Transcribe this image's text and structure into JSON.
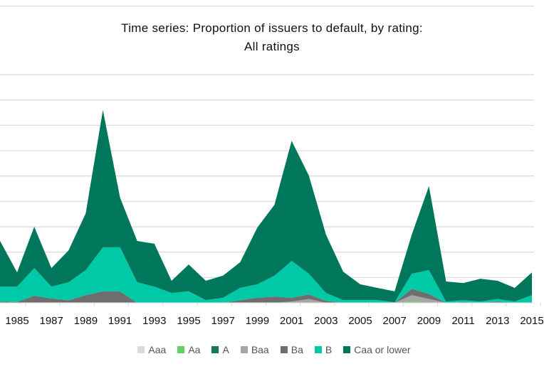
{
  "chart_data": {
    "type": "area",
    "stacked": true,
    "title": "Time series: Proportion of issuers to default, by rating:",
    "subtitle": "All ratings",
    "xlabel": "",
    "ylabel": "",
    "xlim": [
      1984,
      2015
    ],
    "ylim": [
      0,
      9
    ],
    "grid": true,
    "legend_position": "bottom",
    "x": [
      1984,
      1985,
      1986,
      1987,
      1988,
      1989,
      1990,
      1991,
      1992,
      1993,
      1994,
      1995,
      1996,
      1997,
      1998,
      1999,
      2000,
      2001,
      2002,
      2003,
      2004,
      2005,
      2006,
      2007,
      2008,
      2009,
      2010,
      2011,
      2012,
      2013,
      2014,
      2015
    ],
    "x_tick_labels": [
      "1985",
      "1987",
      "1989",
      "1991",
      "1993",
      "1995",
      "1997",
      "1999",
      "2001",
      "2003",
      "2005",
      "2007",
      "2009",
      "2011",
      "2013",
      "2015"
    ],
    "series": [
      {
        "name": "Aaa",
        "color": "#d9d9d9",
        "values": [
          0,
          0,
          0,
          0,
          0,
          0,
          0,
          0,
          0,
          0,
          0,
          0,
          0,
          0,
          0,
          0,
          0,
          0,
          0,
          0,
          0,
          0,
          0,
          0,
          0,
          0,
          0,
          0,
          0,
          0,
          0,
          0
        ]
      },
      {
        "name": "Aa",
        "color": "#5fd35f",
        "values": [
          0,
          0,
          0,
          0,
          0,
          0,
          0,
          0,
          0,
          0,
          0,
          0,
          0,
          0,
          0,
          0,
          0,
          0,
          0,
          0,
          0,
          0,
          0,
          0,
          0.05,
          0,
          0,
          0,
          0,
          0,
          0,
          0
        ]
      },
      {
        "name": "A",
        "color": "#127a55",
        "values": [
          0,
          0,
          0,
          0,
          0,
          0,
          0,
          0,
          0,
          0,
          0,
          0,
          0,
          0,
          0,
          0,
          0,
          0,
          0,
          0,
          0,
          0,
          0,
          0,
          0,
          0,
          0,
          0,
          0,
          0,
          0,
          0
        ]
      },
      {
        "name": "Baa",
        "color": "#a6a6a6",
        "values": [
          0,
          0,
          0,
          0,
          0,
          0,
          0,
          0,
          0,
          0,
          0,
          0,
          0,
          0,
          0,
          0,
          0,
          0.05,
          0.15,
          0,
          0,
          0,
          0,
          0,
          0.25,
          0.15,
          0,
          0,
          0,
          0,
          0,
          0
        ]
      },
      {
        "name": "Ba",
        "color": "#6e6e6e",
        "values": [
          0.05,
          0.03,
          0.28,
          0.17,
          0.1,
          0.3,
          0.45,
          0.45,
          0,
          0,
          0,
          0,
          0,
          0,
          0.1,
          0.2,
          0.25,
          0.15,
          0.18,
          0.08,
          0,
          0,
          0,
          0,
          0.25,
          0.2,
          0,
          0.03,
          0,
          0.05,
          0,
          0
        ]
      },
      {
        "name": "B",
        "color": "#00c9a7",
        "values": [
          0.59,
          0.61,
          1.09,
          0.47,
          0.71,
          0.99,
          1.74,
          1.74,
          0.81,
          0.64,
          0.39,
          0.45,
          0.11,
          0.2,
          0.49,
          0.53,
          0.82,
          1.45,
          0.82,
          0.31,
          0.11,
          0.11,
          0.11,
          0.02,
          0.6,
          0.94,
          0.05,
          0.07,
          0.05,
          0.1,
          0.05,
          0.3
        ]
      },
      {
        "name": "Caa or lower",
        "color": "#00775a",
        "values": [
          1.81,
          0.56,
          1.63,
          0.73,
          1.26,
          2.24,
          5.41,
          1.96,
          1.63,
          1.69,
          0.48,
          1.06,
          0.76,
          0.87,
          1.01,
          2.24,
          2.8,
          4.74,
          3.87,
          2.3,
          1.12,
          0.62,
          0.48,
          0.43,
          1.54,
          3.31,
          0.79,
          0.68,
          0.9,
          0.72,
          0.54,
          0.9
        ]
      }
    ]
  }
}
